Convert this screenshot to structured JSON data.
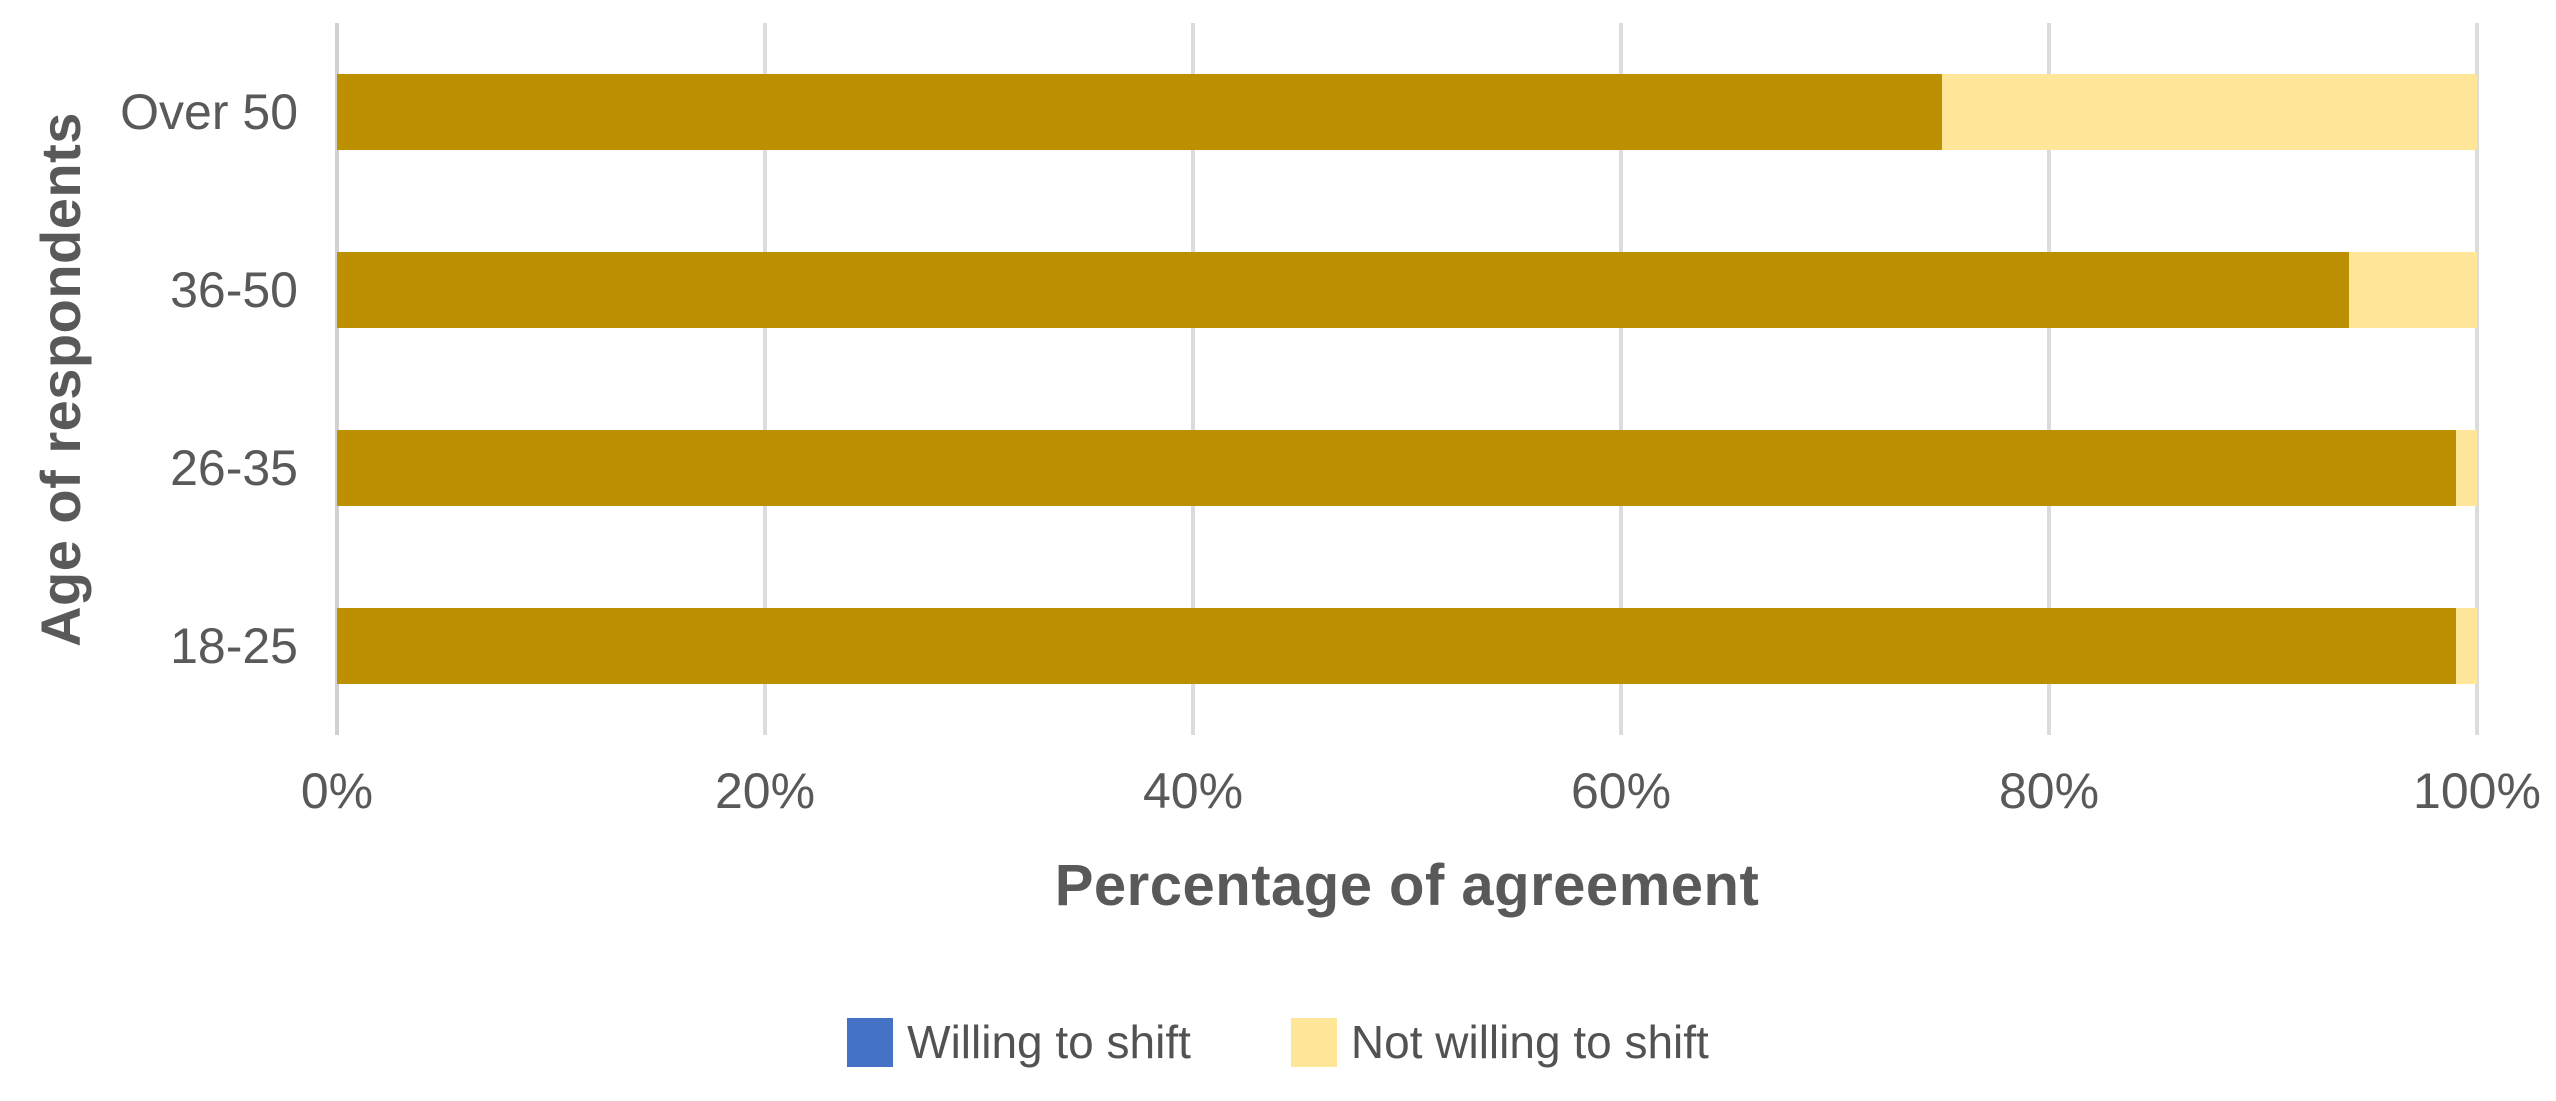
{
  "chart_data": {
    "type": "bar",
    "orientation": "horizontal",
    "stacked": true,
    "hundred_percent_stacked": true,
    "categories": [
      "Over 50",
      "36-50",
      "26-35",
      "18-25"
    ],
    "categories_order": "top-to-bottom",
    "series": [
      {
        "name": "Willing to shift",
        "values": [
          75,
          94,
          99,
          99
        ],
        "bar_color": "#BC9000",
        "legend_swatch_color": "#4472C4"
      },
      {
        "name": "Not willing to shift",
        "values": [
          25,
          6,
          1,
          1
        ],
        "bar_color": "#FFE699",
        "legend_swatch_color": "#FFE699"
      }
    ],
    "xlabel": "Percentage of agreement",
    "ylabel": "Age of respondents",
    "xlim": [
      0,
      100
    ],
    "x_ticks": [
      {
        "label": "0%",
        "value": 0
      },
      {
        "label": "20%",
        "value": 20
      },
      {
        "label": "40%",
        "value": 40
      },
      {
        "label": "60%",
        "value": 60
      },
      {
        "label": "80%",
        "value": 80
      },
      {
        "label": "100%",
        "value": 100
      }
    ],
    "grid": "vertical-only",
    "legend_position": "bottom-center"
  },
  "colors": {
    "background": "#FFFFFF",
    "text": "#595959",
    "gridline": "#DCDCDC",
    "axis_line": "#D2D0D0"
  }
}
